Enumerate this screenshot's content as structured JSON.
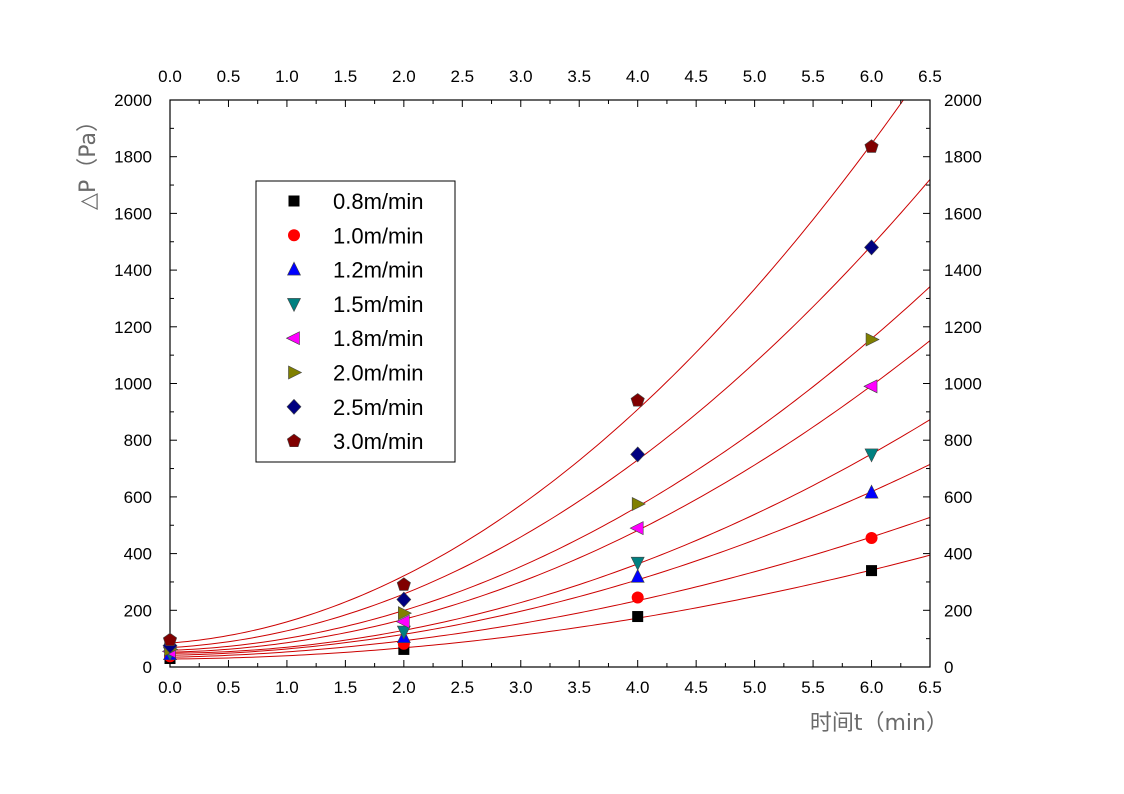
{
  "chart_data": {
    "type": "scatter",
    "xlabel": "时间t（min）",
    "ylabel": "△P（Pa）",
    "xlim": [
      0,
      6.5
    ],
    "ylim": [
      0,
      2000
    ],
    "x_ticks": [
      "0.0",
      "0.5",
      "1.0",
      "1.5",
      "2.0",
      "2.5",
      "3.0",
      "3.5",
      "4.0",
      "4.5",
      "5.0",
      "5.5",
      "6.0",
      "6.5"
    ],
    "y_ticks": [
      "0",
      "200",
      "400",
      "600",
      "800",
      "1000",
      "1200",
      "1400",
      "1600",
      "1800",
      "2000"
    ],
    "grid": false,
    "legend_position": "top-left",
    "fit_line_color": "#cc0000",
    "series": [
      {
        "name": "0.8m/min",
        "marker": "square",
        "color": "#000000",
        "x": [
          0,
          2,
          4,
          6
        ],
        "y": [
          30,
          62,
          178,
          340
        ]
      },
      {
        "name": "1.0m/min",
        "marker": "circle",
        "color": "#ff0000",
        "x": [
          0,
          2,
          4,
          6
        ],
        "y": [
          38,
          82,
          245,
          455
        ]
      },
      {
        "name": "1.2m/min",
        "marker": "triangle-up",
        "color": "#0000ff",
        "x": [
          0,
          2,
          4,
          6
        ],
        "y": [
          45,
          105,
          318,
          615
        ]
      },
      {
        "name": "1.5m/min",
        "marker": "triangle-down",
        "color": "#008080",
        "x": [
          0,
          2,
          4,
          6
        ],
        "y": [
          50,
          125,
          368,
          750
        ]
      },
      {
        "name": "1.8m/min",
        "marker": "triangle-left",
        "color": "#ff00ff",
        "x": [
          0,
          2,
          4,
          6
        ],
        "y": [
          55,
          160,
          490,
          990
        ]
      },
      {
        "name": "2.0m/min",
        "marker": "triangle-right",
        "color": "#808000",
        "x": [
          0,
          2,
          4,
          6
        ],
        "y": [
          62,
          190,
          575,
          1155
        ]
      },
      {
        "name": "2.5m/min",
        "marker": "diamond",
        "color": "#000080",
        "x": [
          0,
          2,
          4,
          6
        ],
        "y": [
          75,
          238,
          750,
          1480
        ]
      },
      {
        "name": "3.0m/min",
        "marker": "pentagon",
        "color": "#800000",
        "x": [
          0,
          2,
          4,
          6
        ],
        "y": [
          95,
          290,
          940,
          1835
        ]
      }
    ]
  }
}
